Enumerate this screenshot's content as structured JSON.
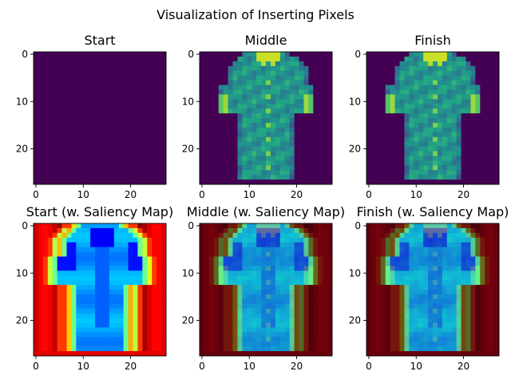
{
  "figure": {
    "title": "Visualization of Inserting Pixels"
  },
  "chart_data": [
    {
      "type": "heatmap",
      "title": "Start",
      "image": "blank",
      "grid_size": [
        28,
        28
      ],
      "xticks": [
        0,
        10,
        20
      ],
      "yticks": [
        0,
        10,
        20
      ],
      "xlim": [
        -0.5,
        27.5
      ],
      "ylim": [
        27.5,
        -0.5
      ],
      "colormap": "viridis",
      "grid": false
    },
    {
      "type": "heatmap",
      "title": "Middle",
      "image": "shirt",
      "grid_size": [
        28,
        28
      ],
      "xticks": [
        0,
        10,
        20
      ],
      "yticks": [
        0,
        10,
        20
      ],
      "xlim": [
        -0.5,
        27.5
      ],
      "ylim": [
        27.5,
        -0.5
      ],
      "colormap": "viridis",
      "grid": false
    },
    {
      "type": "heatmap",
      "title": "Finish",
      "image": "shirt",
      "grid_size": [
        28,
        28
      ],
      "xticks": [
        0,
        10,
        20
      ],
      "yticks": [
        0,
        10,
        20
      ],
      "xlim": [
        -0.5,
        27.5
      ],
      "ylim": [
        27.5,
        -0.5
      ],
      "colormap": "viridis",
      "grid": false
    },
    {
      "type": "heatmap",
      "title": "Start (w. Saliency Map)",
      "image": "saliency",
      "grid_size": [
        28,
        28
      ],
      "xticks": [
        0,
        10,
        20
      ],
      "yticks": [
        0,
        10,
        20
      ],
      "xlim": [
        -0.5,
        27.5
      ],
      "ylim": [
        27.5,
        -0.5
      ],
      "colormap": "jet",
      "grid": false
    },
    {
      "type": "heatmap",
      "title": "Middle (w. Saliency Map)",
      "image": "overlay",
      "grid_size": [
        28,
        28
      ],
      "xticks": [
        0,
        10,
        20
      ],
      "yticks": [
        0,
        10,
        20
      ],
      "xlim": [
        -0.5,
        27.5
      ],
      "ylim": [
        27.5,
        -0.5
      ],
      "colormap": "jet over viridis",
      "grid": false
    },
    {
      "type": "heatmap",
      "title": "Finish (w. Saliency Map)",
      "image": "overlay",
      "grid_size": [
        28,
        28
      ],
      "xticks": [
        0,
        10,
        20
      ],
      "yticks": [
        0,
        10,
        20
      ],
      "xlim": [
        -0.5,
        27.5
      ],
      "ylim": [
        27.5,
        -0.5
      ],
      "colormap": "jet over viridis",
      "grid": false
    }
  ]
}
